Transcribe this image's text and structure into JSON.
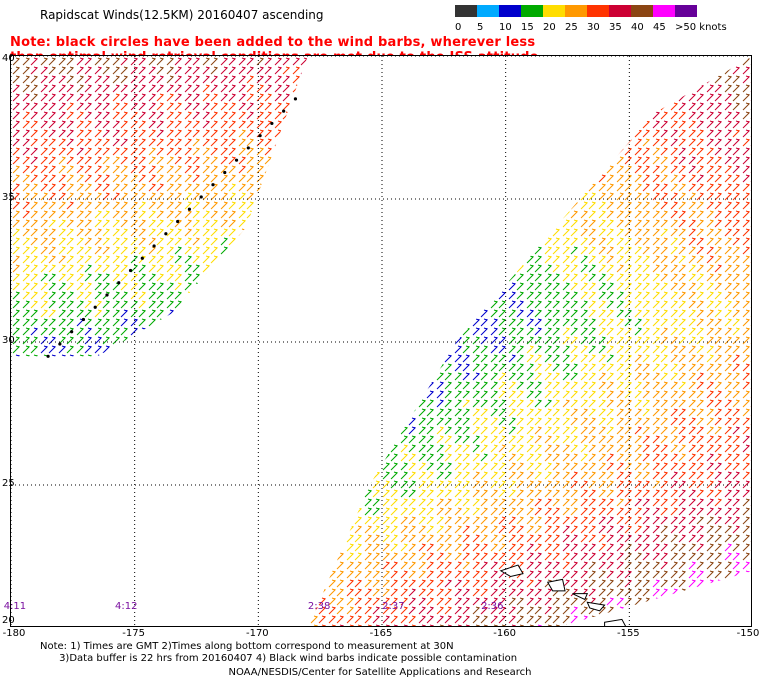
{
  "header": {
    "title": "Rapidscat Winds(12.5KM) 20160407 ascending",
    "note": "Note: black circles have been added to the wind barbs, wherever less than optimal wind retrieval conditions are met due to the ISS attitude changes."
  },
  "legend": {
    "unit": "knots",
    "bins": [
      {
        "label": "0",
        "color": "#333333"
      },
      {
        "label": "5",
        "color": "#00aaff"
      },
      {
        "label": "10",
        "color": "#0000cc"
      },
      {
        "label": "15",
        "color": "#00aa00"
      },
      {
        "label": "20",
        "color": "#ffdd00"
      },
      {
        "label": "25",
        "color": "#ff9900"
      },
      {
        "label": "30",
        "color": "#ff3300"
      },
      {
        "label": "35",
        "color": "#cc0033"
      },
      {
        "label": "40",
        "color": "#8b4513"
      },
      {
        "label": "45",
        "color": "#ff00ff"
      },
      {
        "label": ">50",
        "color": "#660099"
      }
    ],
    "last_label": ">50 knots"
  },
  "map": {
    "lon_ticks": [
      "-180",
      "-175",
      "-170",
      "-165",
      "-160",
      "-155",
      "-150"
    ],
    "lat_ticks": [
      "40",
      "35",
      "30",
      "25",
      "20"
    ],
    "lon_range": [
      -180,
      -150
    ],
    "lat_range": [
      20,
      40
    ],
    "pass_times": [
      {
        "label": "4:11",
        "lon": -179.8
      },
      {
        "label": "4:12",
        "lon": -175.3
      },
      {
        "label": "2:38",
        "lon": -167.5
      },
      {
        "label": "2:37",
        "lon": -164.5
      },
      {
        "label": "2:36",
        "lon": -160.5
      }
    ],
    "swaths": [
      {
        "name": "west pass",
        "polygon": [
          [
            -180,
            40
          ],
          [
            -168,
            40
          ],
          [
            -170.5,
            34
          ],
          [
            -173.5,
            31
          ],
          [
            -176.5,
            29.5
          ],
          [
            -180,
            29.5
          ]
        ]
      },
      {
        "name": "east pass",
        "polygon": [
          [
            -150,
            40
          ],
          [
            -150,
            22
          ],
          [
            -158,
            20
          ],
          [
            -168,
            20
          ],
          [
            -165.5,
            25
          ],
          [
            -162,
            30
          ],
          [
            -158,
            34
          ],
          [
            -154,
            38
          ]
        ]
      }
    ],
    "grid": "dotted"
  },
  "footer": {
    "notes": "Note: 1) Times are GMT 2)Times along bottom correspond to measurement at 30N\n      3)Data buffer is 22 hrs from 20160407 4) Black wind barbs indicate possible contamination",
    "credit": "NOAA/NESDIS/Center for Satellite Applications and Research"
  }
}
